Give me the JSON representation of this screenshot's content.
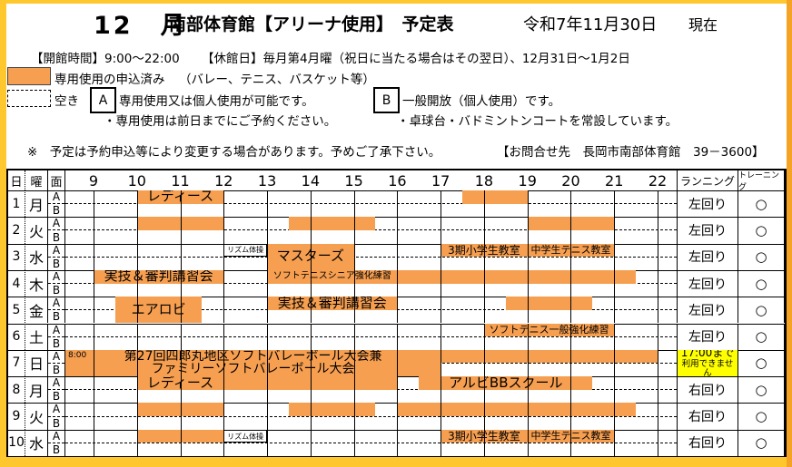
{
  "header": {
    "month": "12　月",
    "title": "南部体育館【アリーナ使用】　予定表",
    "date": "令和7年11月30日",
    "asof": "現在",
    "open_hours": "【開館時間】9:00～22:00",
    "closed_days": "【休館日】毎月第4月曜（祝日に当たる場合はその翌日）、12月31日～1月2日"
  },
  "legend": {
    "reserved_label": "専用使用の申込済み",
    "reserved_note": "（バレー、テニス、バスケット等）",
    "vacant_label": "空き",
    "a_mark": "A",
    "a_text": "専用使用又は個人使用が可能です。",
    "a_note": "・専用使用は前日までにご予約ください。",
    "b_mark": "B",
    "b_text": "一般開放（個人使用）です。",
    "b_note": "・卓球台・バドミントンコートを常設しています。",
    "caution": "※　予定は予約申込等により変更する場合があります。予めご了承下さい。",
    "contact": "【お問合せ先　長岡市南部体育館　39－3600】"
  },
  "table": {
    "col_day": "日",
    "col_weekday": "曜",
    "col_court": "面",
    "col_running": "ランニング",
    "col_training": "トレーニング",
    "hours": [
      9,
      10,
      11,
      12,
      13,
      14,
      15,
      16,
      17,
      18,
      19,
      20,
      21,
      22
    ],
    "court_labels": [
      "A",
      "B"
    ],
    "rows": [
      {
        "day": "1",
        "weekday": "月",
        "running": "左回り",
        "training": "○",
        "blocks": [
          {
            "start": 10,
            "end": 12,
            "span": "A",
            "label": "レディース"
          },
          {
            "start": 17.5,
            "end": 19,
            "span": "A",
            "label": ""
          }
        ]
      },
      {
        "day": "2",
        "weekday": "火",
        "running": "左回り",
        "training": "○",
        "blocks": [
          {
            "start": 10,
            "end": 12,
            "span": "A",
            "label": ""
          },
          {
            "start": 13.5,
            "end": 15.5,
            "span": "A",
            "label": ""
          },
          {
            "start": 19,
            "end": 21,
            "span": "A",
            "label": ""
          }
        ]
      },
      {
        "day": "3",
        "weekday": "水",
        "running": "左回り",
        "training": "○",
        "blocks": [
          {
            "start": 12,
            "end": 13,
            "span": "A",
            "label": "リズム体操",
            "type": "note"
          },
          {
            "start": 13,
            "end": 15,
            "span": "AB",
            "label": "マスターズ"
          },
          {
            "start": 17,
            "end": 19,
            "span": "A",
            "label": "3期小学生教室"
          },
          {
            "start": 19,
            "end": 21,
            "span": "A",
            "label": "中学生テニス教室"
          }
        ]
      },
      {
        "day": "4",
        "weekday": "木",
        "running": "左回り",
        "training": "○",
        "blocks": [
          {
            "start": 9,
            "end": 12,
            "span": "A",
            "label": "実技＆審判講習会"
          },
          {
            "start": 13,
            "end": 16,
            "span": "A",
            "label": "ソフトテニスシニア強化練習"
          },
          {
            "start": 16,
            "end": 21.5,
            "span": "A",
            "label": ""
          }
        ]
      },
      {
        "day": "5",
        "weekday": "金",
        "running": "左回り",
        "training": "○",
        "blocks": [
          {
            "start": 9.5,
            "end": 11.5,
            "span": "AB",
            "label": "エアロビ"
          },
          {
            "start": 13,
            "end": 16,
            "span": "A",
            "label": "実技＆審判講習会"
          },
          {
            "start": 18.5,
            "end": 20.5,
            "span": "A",
            "label": ""
          }
        ]
      },
      {
        "day": "6",
        "weekday": "土",
        "running": "左回り",
        "training": "○",
        "blocks": [
          {
            "start": 18,
            "end": 21,
            "span": "A",
            "label": "ソフトテニス一般強化練習"
          }
        ]
      },
      {
        "day": "7",
        "weekday": "日",
        "running_note": [
          "17:00まで",
          "利用できません"
        ],
        "training": "○",
        "blocks": [
          {
            "start": 8.3,
            "end": 17,
            "span": "AB",
            "label": "第27回四郎丸地区ソフトバレーボール大会兼\nファミリーソフトバレーボール大会",
            "time_label": "8:00"
          },
          {
            "start": 17,
            "end": 22,
            "span": "A",
            "label": ""
          }
        ]
      },
      {
        "day": "8",
        "weekday": "月",
        "running": "右回り",
        "training": "○",
        "blocks": [
          {
            "start": 10,
            "end": 12,
            "span": "A",
            "label": "レディース"
          },
          {
            "start": 12,
            "end": 16,
            "span": "A",
            "label": ""
          },
          {
            "start": 16.5,
            "end": 20.5,
            "span": "A",
            "label": "アルビBBスクール"
          }
        ]
      },
      {
        "day": "9",
        "weekday": "火",
        "running": "右回り",
        "training": "○",
        "blocks": [
          {
            "start": 10,
            "end": 12,
            "span": "A",
            "label": ""
          },
          {
            "start": 13.5,
            "end": 15.5,
            "span": "A",
            "label": ""
          },
          {
            "start": 16,
            "end": 21.5,
            "span": "A",
            "label": ""
          }
        ]
      },
      {
        "day": "10",
        "weekday": "水",
        "running": "右回り",
        "training": "○",
        "blocks": [
          {
            "start": 10,
            "end": 12,
            "span": "A",
            "label": ""
          },
          {
            "start": 12,
            "end": 13,
            "span": "A",
            "label": "リズム体操",
            "type": "note"
          },
          {
            "start": 17,
            "end": 19,
            "span": "A",
            "label": "3期小学生教室"
          },
          {
            "start": 19,
            "end": 21,
            "span": "A",
            "label": "中学生テニス教室"
          }
        ]
      }
    ]
  },
  "colors": {
    "block_fill": "#F69F51",
    "highlight": "#FFFF00",
    "frame": "#FFC72E",
    "frame_right": "#F5A325"
  }
}
